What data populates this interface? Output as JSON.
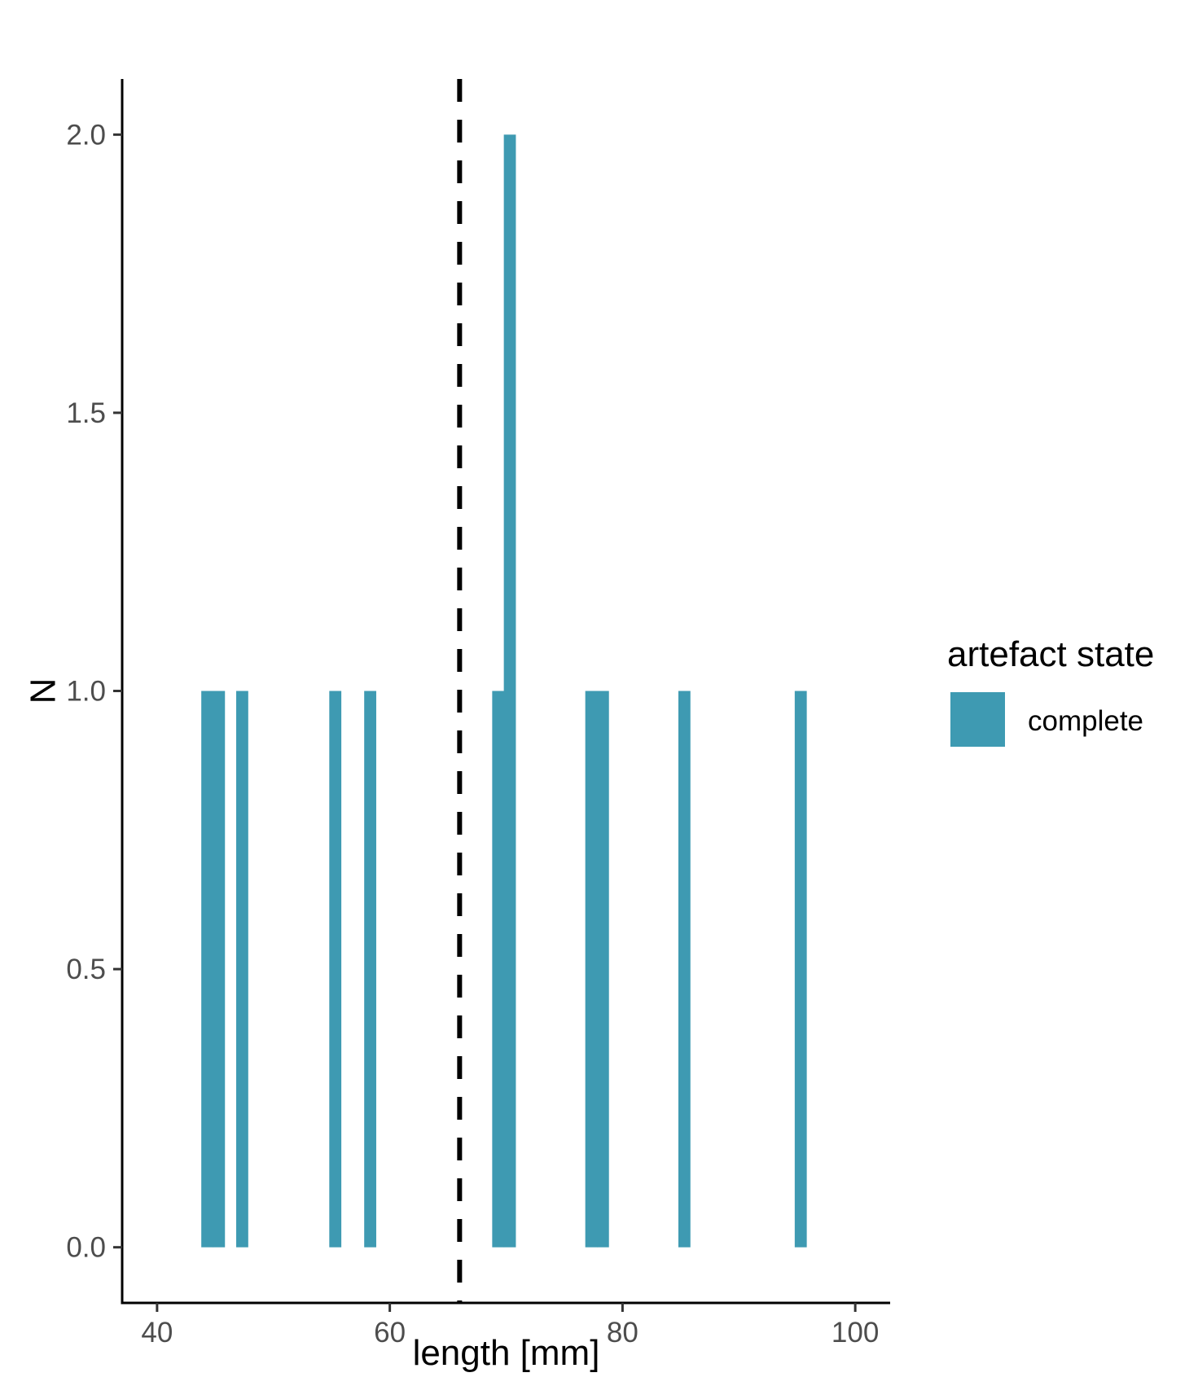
{
  "chart_data": {
    "type": "bar",
    "xlabel": "length [mm]",
    "ylabel": "N",
    "xlim": [
      37,
      103
    ],
    "ylim": [
      -0.1,
      2.1
    ],
    "x_ticks": [
      40,
      60,
      80,
      100
    ],
    "y_ticks": [
      0.0,
      0.5,
      1.0,
      1.5,
      2.0
    ],
    "y_tick_labels": [
      "0.0",
      "0.5",
      "1.0",
      "1.5",
      "2.0"
    ],
    "bin_width": 1,
    "series": [
      {
        "name": "complete",
        "color": "#3E9AB2",
        "bins": [
          {
            "x0": 43.8,
            "x1": 44.8,
            "count": 1
          },
          {
            "x0": 44.8,
            "x1": 45.8,
            "count": 1
          },
          {
            "x0": 46.8,
            "x1": 47.8,
            "count": 1
          },
          {
            "x0": 54.8,
            "x1": 55.8,
            "count": 1
          },
          {
            "x0": 57.8,
            "x1": 58.8,
            "count": 1
          },
          {
            "x0": 68.8,
            "x1": 69.8,
            "count": 1
          },
          {
            "x0": 69.8,
            "x1": 70.8,
            "count": 2
          },
          {
            "x0": 76.8,
            "x1": 77.8,
            "count": 1
          },
          {
            "x0": 77.8,
            "x1": 78.8,
            "count": 1
          },
          {
            "x0": 84.8,
            "x1": 85.8,
            "count": 1
          },
          {
            "x0": 94.8,
            "x1": 95.8,
            "count": 1
          }
        ]
      }
    ],
    "vline": {
      "x": 66,
      "style": "dashed",
      "color": "#000000"
    },
    "legend": {
      "title": "artefact state",
      "position": "right",
      "items": [
        {
          "label": "complete",
          "color": "#3E9AB2"
        }
      ]
    },
    "grid": false
  }
}
